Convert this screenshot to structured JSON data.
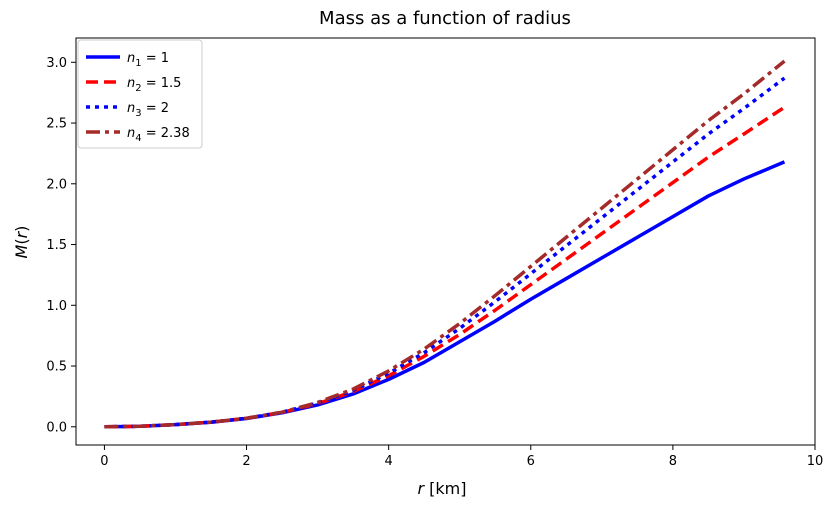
{
  "chart_data": {
    "type": "line",
    "title": "Mass as a function of radius",
    "xlabel": {
      "var": "r",
      "unit": " [km]"
    },
    "ylabel": {
      "var": "M",
      "paren_open": "(",
      "arg": "r",
      "paren_close": ")"
    },
    "xlim": [
      -0.4,
      10.0
    ],
    "ylim": [
      -0.15,
      3.2
    ],
    "x_ticks": [
      0,
      2,
      4,
      6,
      8,
      10
    ],
    "y_ticks": [
      0.0,
      0.5,
      1.0,
      1.5,
      2.0,
      2.5,
      3.0
    ],
    "x_tick_labels": [
      "0",
      "2",
      "4",
      "6",
      "8",
      "10"
    ],
    "y_tick_labels": [
      "0.0",
      "0.5",
      "1.0",
      "1.5",
      "2.0",
      "2.5",
      "3.0"
    ],
    "grid": false,
    "legend_position": "top-left",
    "x": [
      0,
      0.5,
      1.0,
      1.5,
      2.0,
      2.5,
      3.0,
      3.5,
      4.0,
      4.5,
      5.0,
      5.5,
      6.0,
      6.5,
      7.0,
      7.5,
      8.0,
      8.5,
      9.0,
      9.57
    ],
    "series": [
      {
        "name": {
          "var": "n",
          "sub": "1",
          "eq": " = 1"
        },
        "color": "#0000ff",
        "dash": "solid",
        "values": [
          0.0,
          0.004,
          0.018,
          0.037,
          0.068,
          0.115,
          0.18,
          0.27,
          0.39,
          0.53,
          0.7,
          0.87,
          1.05,
          1.22,
          1.39,
          1.56,
          1.73,
          1.9,
          2.04,
          2.18
        ]
      },
      {
        "name": {
          "var": "n",
          "sub": "2",
          "eq": " = 1.5"
        },
        "color": "#ff0000",
        "dash": "dashed",
        "values": [
          0.0,
          0.004,
          0.018,
          0.038,
          0.07,
          0.118,
          0.19,
          0.29,
          0.42,
          0.58,
          0.76,
          0.96,
          1.17,
          1.38,
          1.59,
          1.8,
          2.01,
          2.22,
          2.41,
          2.63
        ]
      },
      {
        "name": {
          "var": "n",
          "sub": "3",
          "eq": " = 2"
        },
        "color": "#0000ff",
        "dash": "dotted",
        "values": [
          0.0,
          0.004,
          0.018,
          0.038,
          0.07,
          0.12,
          0.195,
          0.3,
          0.44,
          0.61,
          0.81,
          1.03,
          1.26,
          1.49,
          1.72,
          1.95,
          2.18,
          2.41,
          2.62,
          2.87
        ]
      },
      {
        "name": {
          "var": "n",
          "sub": "4",
          "eq": " = 2.38"
        },
        "color": "#a52a2a",
        "dash": "dashdot",
        "values": [
          0.0,
          0.004,
          0.018,
          0.038,
          0.07,
          0.12,
          0.2,
          0.31,
          0.46,
          0.64,
          0.85,
          1.08,
          1.32,
          1.56,
          1.8,
          2.04,
          2.28,
          2.52,
          2.74,
          3.01
        ]
      }
    ]
  }
}
